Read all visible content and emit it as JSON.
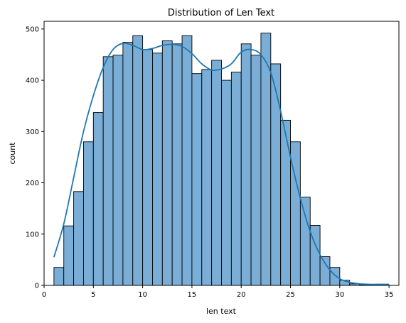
{
  "chart_data": {
    "type": "histogram",
    "title": "Distribution of Len Text",
    "xlabel": "len text",
    "ylabel": "count",
    "xlim": [
      0,
      36
    ],
    "ylim": [
      0,
      515
    ],
    "x_ticks": [
      0,
      5,
      10,
      15,
      20,
      25,
      30,
      35
    ],
    "y_ticks": [
      0,
      100,
      200,
      300,
      400,
      500
    ],
    "grid": false,
    "bar_color": "#7aaed6",
    "bar_edge_color": "#000000",
    "kde_color": "#1f77b4",
    "bins": [
      {
        "x0": 1.0,
        "x1": 2.0,
        "count": 35
      },
      {
        "x0": 2.0,
        "x1": 3.0,
        "count": 116
      },
      {
        "x0": 3.0,
        "x1": 4.0,
        "count": 183
      },
      {
        "x0": 4.0,
        "x1": 5.0,
        "count": 280
      },
      {
        "x0": 5.0,
        "x1": 6.0,
        "count": 337
      },
      {
        "x0": 6.0,
        "x1": 7.0,
        "count": 446
      },
      {
        "x0": 7.0,
        "x1": 8.0,
        "count": 449
      },
      {
        "x0": 8.0,
        "x1": 9.0,
        "count": 474
      },
      {
        "x0": 9.0,
        "x1": 10.0,
        "count": 487
      },
      {
        "x0": 10.0,
        "x1": 11.0,
        "count": 460
      },
      {
        "x0": 11.0,
        "x1": 12.0,
        "count": 453
      },
      {
        "x0": 12.0,
        "x1": 13.0,
        "count": 477
      },
      {
        "x0": 13.0,
        "x1": 14.0,
        "count": 471
      },
      {
        "x0": 14.0,
        "x1": 15.0,
        "count": 487
      },
      {
        "x0": 15.0,
        "x1": 16.0,
        "count": 413
      },
      {
        "x0": 16.0,
        "x1": 17.0,
        "count": 421
      },
      {
        "x0": 17.0,
        "x1": 18.0,
        "count": 439
      },
      {
        "x0": 18.0,
        "x1": 19.0,
        "count": 400
      },
      {
        "x0": 19.0,
        "x1": 20.0,
        "count": 416
      },
      {
        "x0": 20.0,
        "x1": 21.0,
        "count": 471
      },
      {
        "x0": 21.0,
        "x1": 22.0,
        "count": 449
      },
      {
        "x0": 22.0,
        "x1": 23.0,
        "count": 492
      },
      {
        "x0": 23.0,
        "x1": 24.0,
        "count": 432
      },
      {
        "x0": 24.0,
        "x1": 25.0,
        "count": 322
      },
      {
        "x0": 25.0,
        "x1": 26.0,
        "count": 280
      },
      {
        "x0": 26.0,
        "x1": 27.0,
        "count": 172
      },
      {
        "x0": 27.0,
        "x1": 28.0,
        "count": 117
      },
      {
        "x0": 28.0,
        "x1": 29.0,
        "count": 56
      },
      {
        "x0": 29.0,
        "x1": 30.0,
        "count": 35
      },
      {
        "x0": 30.0,
        "x1": 31.0,
        "count": 10
      },
      {
        "x0": 31.0,
        "x1": 32.0,
        "count": 3
      },
      {
        "x0": 32.0,
        "x1": 33.0,
        "count": 1
      },
      {
        "x0": 33.0,
        "x1": 34.0,
        "count": 1
      },
      {
        "x0": 34.0,
        "x1": 35.0,
        "count": 1
      }
    ],
    "kde": {
      "x": [
        1,
        2,
        3,
        4,
        5,
        6,
        7,
        8,
        9,
        10,
        11,
        12,
        13,
        14,
        15,
        16,
        17,
        18,
        19,
        20,
        21,
        22,
        23,
        24,
        25,
        26,
        27,
        28,
        29,
        30,
        31,
        32,
        33,
        34,
        35
      ],
      "y": [
        55,
        120,
        210,
        300,
        370,
        425,
        460,
        472,
        468,
        460,
        462,
        468,
        470,
        466,
        452,
        432,
        420,
        422,
        432,
        455,
        460,
        450,
        415,
        340,
        250,
        170,
        105,
        60,
        30,
        13,
        6,
        3,
        2,
        2,
        2
      ]
    }
  }
}
